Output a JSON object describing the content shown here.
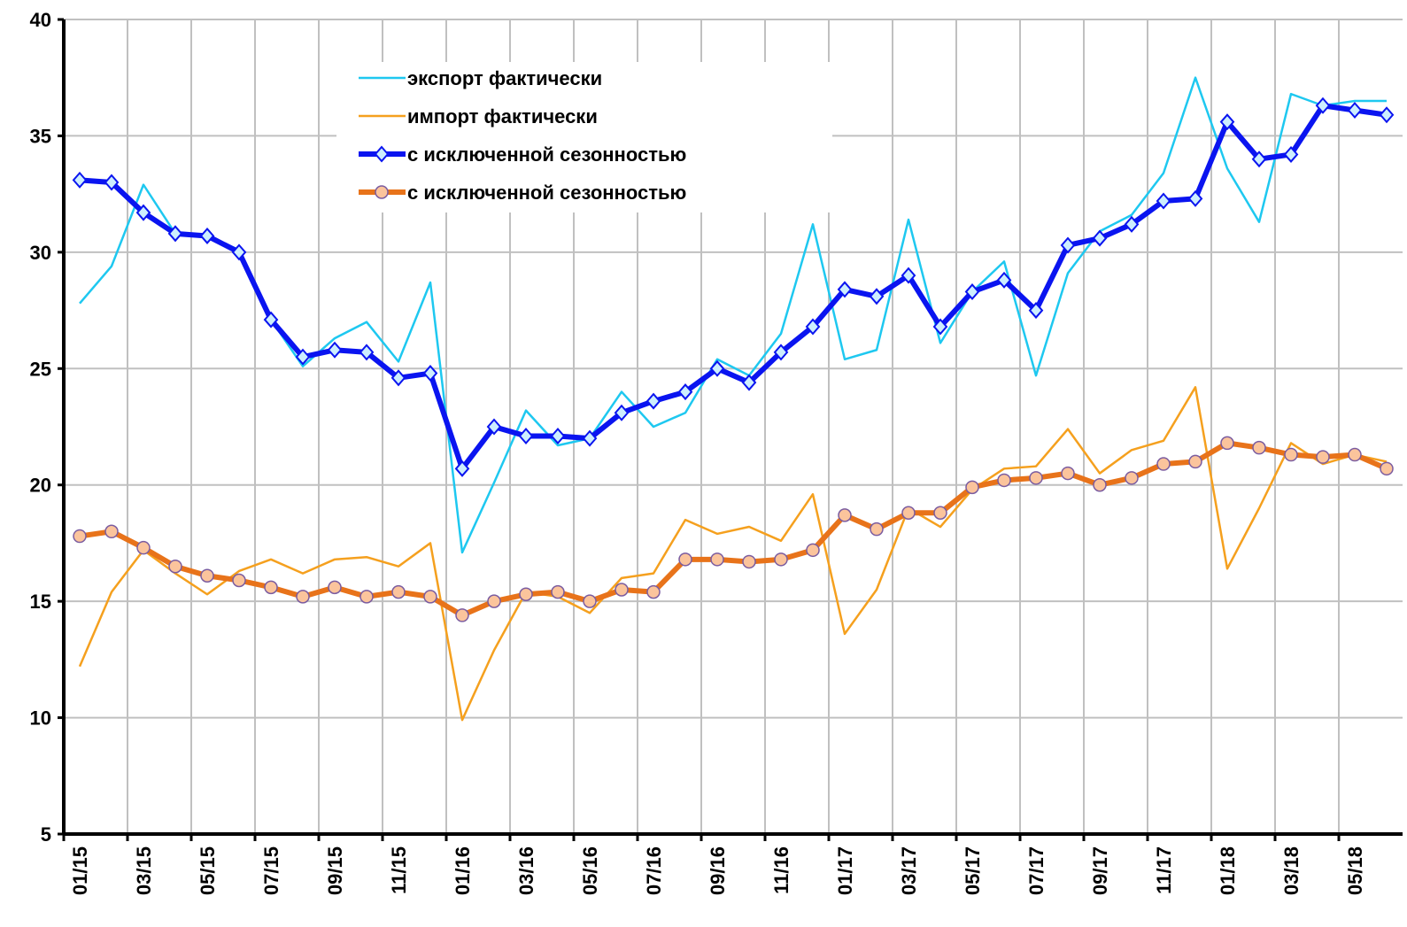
{
  "chart_data": {
    "type": "line",
    "categories": [
      "01/15",
      null,
      "03/15",
      null,
      "05/15",
      null,
      "07/15",
      null,
      "09/15",
      null,
      "11/15",
      null,
      "01/16",
      null,
      "03/16",
      null,
      "05/16",
      null,
      "07/16",
      null,
      "09/16",
      null,
      "11/16",
      null,
      "01/17",
      null,
      "03/17",
      null,
      "05/17",
      null,
      "07/17",
      null,
      "09/17",
      null,
      "11/17",
      null,
      "01/18",
      null,
      "03/18",
      null,
      "05/18",
      null
    ],
    "series": [
      {
        "name": "экспорт фактически",
        "color": "#1ec8f0",
        "width": 2.5,
        "values": [
          27.8,
          29.4,
          32.9,
          30.8,
          30.7,
          30.1,
          27.1,
          25.1,
          26.3,
          27.0,
          25.3,
          28.7,
          17.1,
          20.1,
          23.2,
          21.7,
          22.0,
          24.0,
          22.5,
          23.1,
          25.4,
          24.7,
          26.5,
          31.2,
          25.4,
          25.8,
          31.4,
          26.1,
          28.3,
          29.6,
          24.7,
          29.1,
          30.9,
          31.6,
          33.4,
          37.5,
          33.6,
          31.3,
          36.8,
          36.3,
          36.5,
          36.5
        ]
      },
      {
        "name": "импорт фактически",
        "color": "#f5a01e",
        "width": 2.5,
        "values": [
          12.2,
          15.4,
          17.2,
          16.2,
          15.3,
          16.3,
          16.8,
          16.2,
          16.8,
          16.9,
          16.5,
          17.5,
          9.9,
          12.9,
          15.4,
          15.2,
          14.5,
          16.0,
          16.2,
          18.5,
          17.9,
          18.2,
          17.6,
          19.6,
          13.6,
          15.5,
          19.0,
          18.2,
          19.8,
          20.7,
          20.8,
          22.4,
          20.5,
          21.5,
          21.9,
          24.2,
          16.4,
          19.0,
          21.8,
          20.9,
          21.3,
          21.0
        ]
      },
      {
        "name": "с исключенной сезонностью",
        "color": "#0a14f0",
        "width": 6,
        "marker": "diamond",
        "marker_fill": "#cdeefe",
        "values": [
          33.1,
          33.0,
          31.7,
          30.8,
          30.7,
          30.0,
          27.1,
          25.5,
          25.8,
          25.7,
          24.6,
          24.8,
          20.7,
          22.5,
          22.1,
          22.1,
          22.0,
          23.1,
          23.6,
          24.0,
          25.0,
          24.4,
          25.7,
          26.8,
          28.4,
          28.1,
          29.0,
          26.8,
          28.3,
          28.8,
          27.5,
          30.3,
          30.6,
          31.2,
          32.2,
          32.3,
          35.6,
          34.0,
          34.2,
          36.3,
          36.1,
          35.9
        ]
      },
      {
        "name": "с исключенной сезонностью",
        "color": "#e8731a",
        "width": 6,
        "marker": "circle",
        "marker_fill": "#fbc49c",
        "values": [
          17.8,
          18.0,
          17.3,
          16.5,
          16.1,
          15.9,
          15.6,
          15.2,
          15.6,
          15.2,
          15.4,
          15.2,
          14.4,
          15.0,
          15.3,
          15.4,
          15.0,
          15.5,
          15.4,
          16.8,
          16.8,
          16.7,
          16.8,
          17.2,
          18.7,
          18.1,
          18.8,
          18.8,
          19.9,
          20.2,
          20.3,
          20.5,
          20.0,
          20.3,
          20.9,
          21.0,
          21.8,
          21.6,
          21.3,
          21.2,
          21.3,
          20.7
        ]
      }
    ],
    "ylim": [
      5,
      40
    ],
    "yticks": [
      5,
      10,
      15,
      20,
      25,
      30,
      35,
      40
    ],
    "grid": true,
    "legend": "top"
  }
}
